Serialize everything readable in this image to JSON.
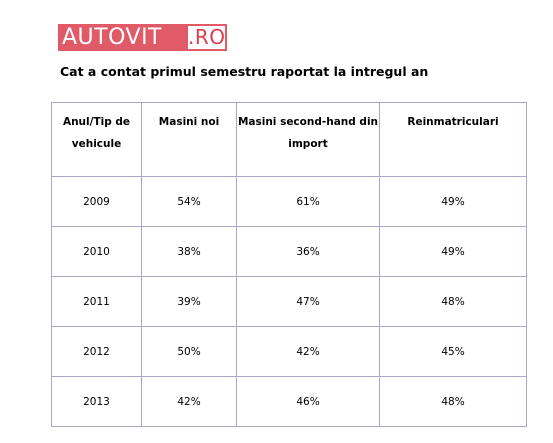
{
  "logo": {
    "main": "AUTOVIT",
    "suffix": ".RO"
  },
  "heading": "Cat a contat primul semestru raportat  la intregul an",
  "table": {
    "headers": [
      "Anul/Tip de vehicule",
      "Masini noi",
      "Masini second-hand din import",
      "Reinmatriculari"
    ],
    "rows": [
      [
        "2009",
        "54%",
        "61%",
        "49%"
      ],
      [
        "2010",
        "38%",
        "36%",
        "49%"
      ],
      [
        "2011",
        "39%",
        "47%",
        "48%"
      ],
      [
        "2012",
        "50%",
        "42%",
        "45%"
      ],
      [
        "2013",
        "42%",
        "46%",
        "48%"
      ]
    ]
  },
  "colors": {
    "logo_red": "#e05a67",
    "table_border": "#a9a9c6"
  }
}
